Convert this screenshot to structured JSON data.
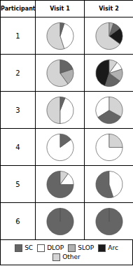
{
  "chart_data": {
    "type": "pie",
    "annotations": [
      "Participant"
    ],
    "categories": [
      "1",
      "2",
      "3",
      "4",
      "5",
      "6"
    ],
    "legend": "bottom",
    "slice_names": [
      "SC",
      "DLOP",
      "SLOP",
      "Arc",
      "Other"
    ],
    "colors": [
      "#656565",
      "#ffffff",
      "#b0b0b0",
      "#1a1a1a",
      "#d4d4d4"
    ],
    "series": [
      {
        "name": "Visit 1",
        "values": [
          {
            "names": [
              "Other",
              "DLOP",
              "SC"
            ],
            "values": [
              0.55,
              0.4,
              0.05
            ]
          },
          {
            "names": [
              "Other",
              "SLOP",
              "SC"
            ],
            "values": [
              0.6,
              0.2,
              0.2
            ]
          },
          {
            "names": [
              "Other",
              "DLOP",
              "SC"
            ],
            "values": [
              0.5,
              0.44,
              0.06
            ]
          },
          {
            "names": [
              "DLOP",
              "SC"
            ],
            "values": [
              0.85,
              0.15
            ]
          },
          {
            "names": [
              "SC",
              "DLOP",
              "Other"
            ],
            "values": [
              0.75,
              0.15,
              0.1
            ]
          },
          {
            "names": [
              "SC"
            ],
            "values": [
              1.0
            ]
          }
        ]
      },
      {
        "name": "Visit 2",
        "values": [
          {
            "names": [
              "Other",
              "Arc",
              "SC",
              "SLOP"
            ],
            "values": [
              0.65,
              0.2,
              0.1,
              0.05
            ]
          },
          {
            "names": [
              "Arc",
              "SC",
              "SLOP",
              "DLOP",
              "Other"
            ],
            "values": [
              0.45,
              0.2,
              0.15,
              0.1,
              0.1
            ]
          },
          {
            "names": [
              "DLOP",
              "SC",
              "Other"
            ],
            "values": [
              0.34,
              0.33,
              0.33
            ]
          },
          {
            "names": [
              "DLOP",
              "Other"
            ],
            "values": [
              0.75,
              0.25
            ]
          },
          {
            "names": [
              "SC",
              "DLOP"
            ],
            "values": [
              0.55,
              0.45
            ]
          },
          {
            "names": [
              "SC"
            ],
            "values": [
              1.0
            ]
          }
        ]
      }
    ]
  }
}
